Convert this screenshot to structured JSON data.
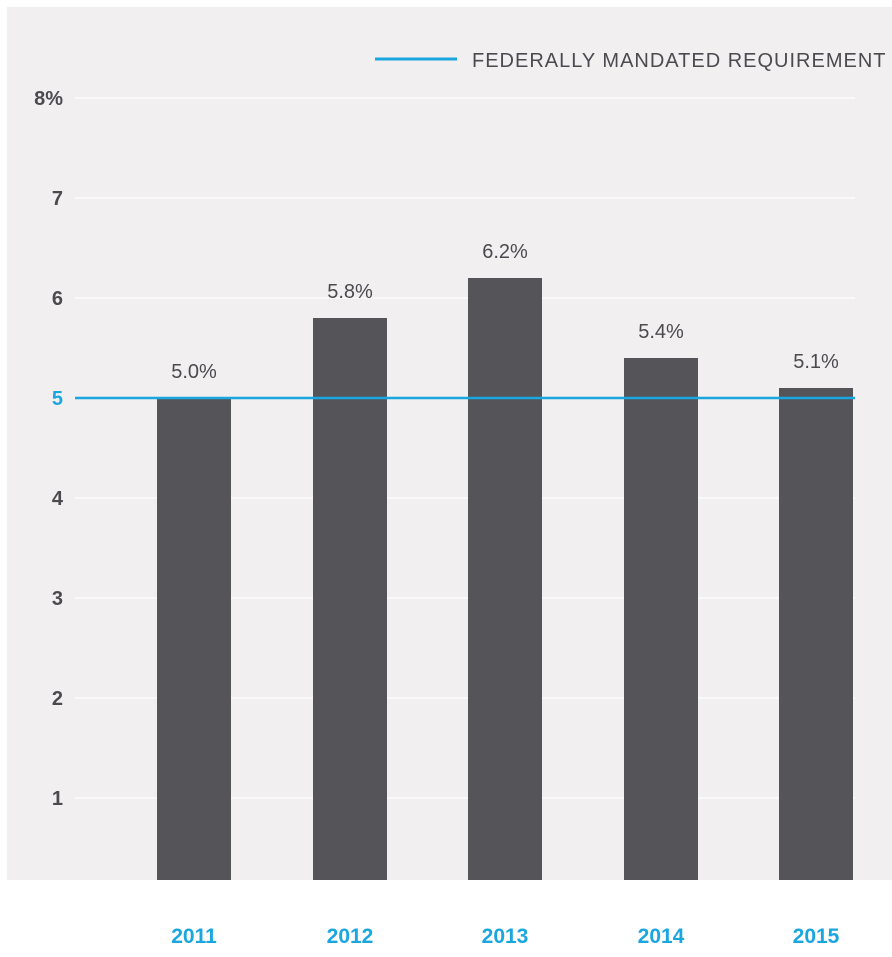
{
  "chart_data": {
    "type": "bar",
    "categories": [
      "2011",
      "2012",
      "2013",
      "2014",
      "2015"
    ],
    "series": [
      {
        "values": [
          5.0,
          5.8,
          6.2,
          5.4,
          5.1
        ],
        "value_labels": [
          "5.0%",
          "5.8%",
          "6.2%",
          "5.4%",
          "5.1%"
        ]
      }
    ],
    "reference_line": {
      "value": 5,
      "label": "FEDERALLY MANDATED REQUIREMENT"
    },
    "y_ticks": [
      {
        "value": 1,
        "label": "1"
      },
      {
        "value": 2,
        "label": "2"
      },
      {
        "value": 3,
        "label": "3"
      },
      {
        "value": 4,
        "label": "4"
      },
      {
        "value": 5,
        "label": "5"
      },
      {
        "value": 6,
        "label": "6"
      },
      {
        "value": 7,
        "label": "7"
      },
      {
        "value": 8,
        "label": "8%"
      }
    ],
    "ylim": [
      0,
      8
    ],
    "grid": true,
    "legend_position": "top-right",
    "title": "",
    "xlabel": "",
    "ylabel": ""
  },
  "colors": {
    "background": "#f1eff0",
    "bar": "#545459",
    "accent": "#1aa6df",
    "axis_text": "#4a4a4f",
    "grid": "#ffffff",
    "value_label": "#4a4a4f"
  }
}
